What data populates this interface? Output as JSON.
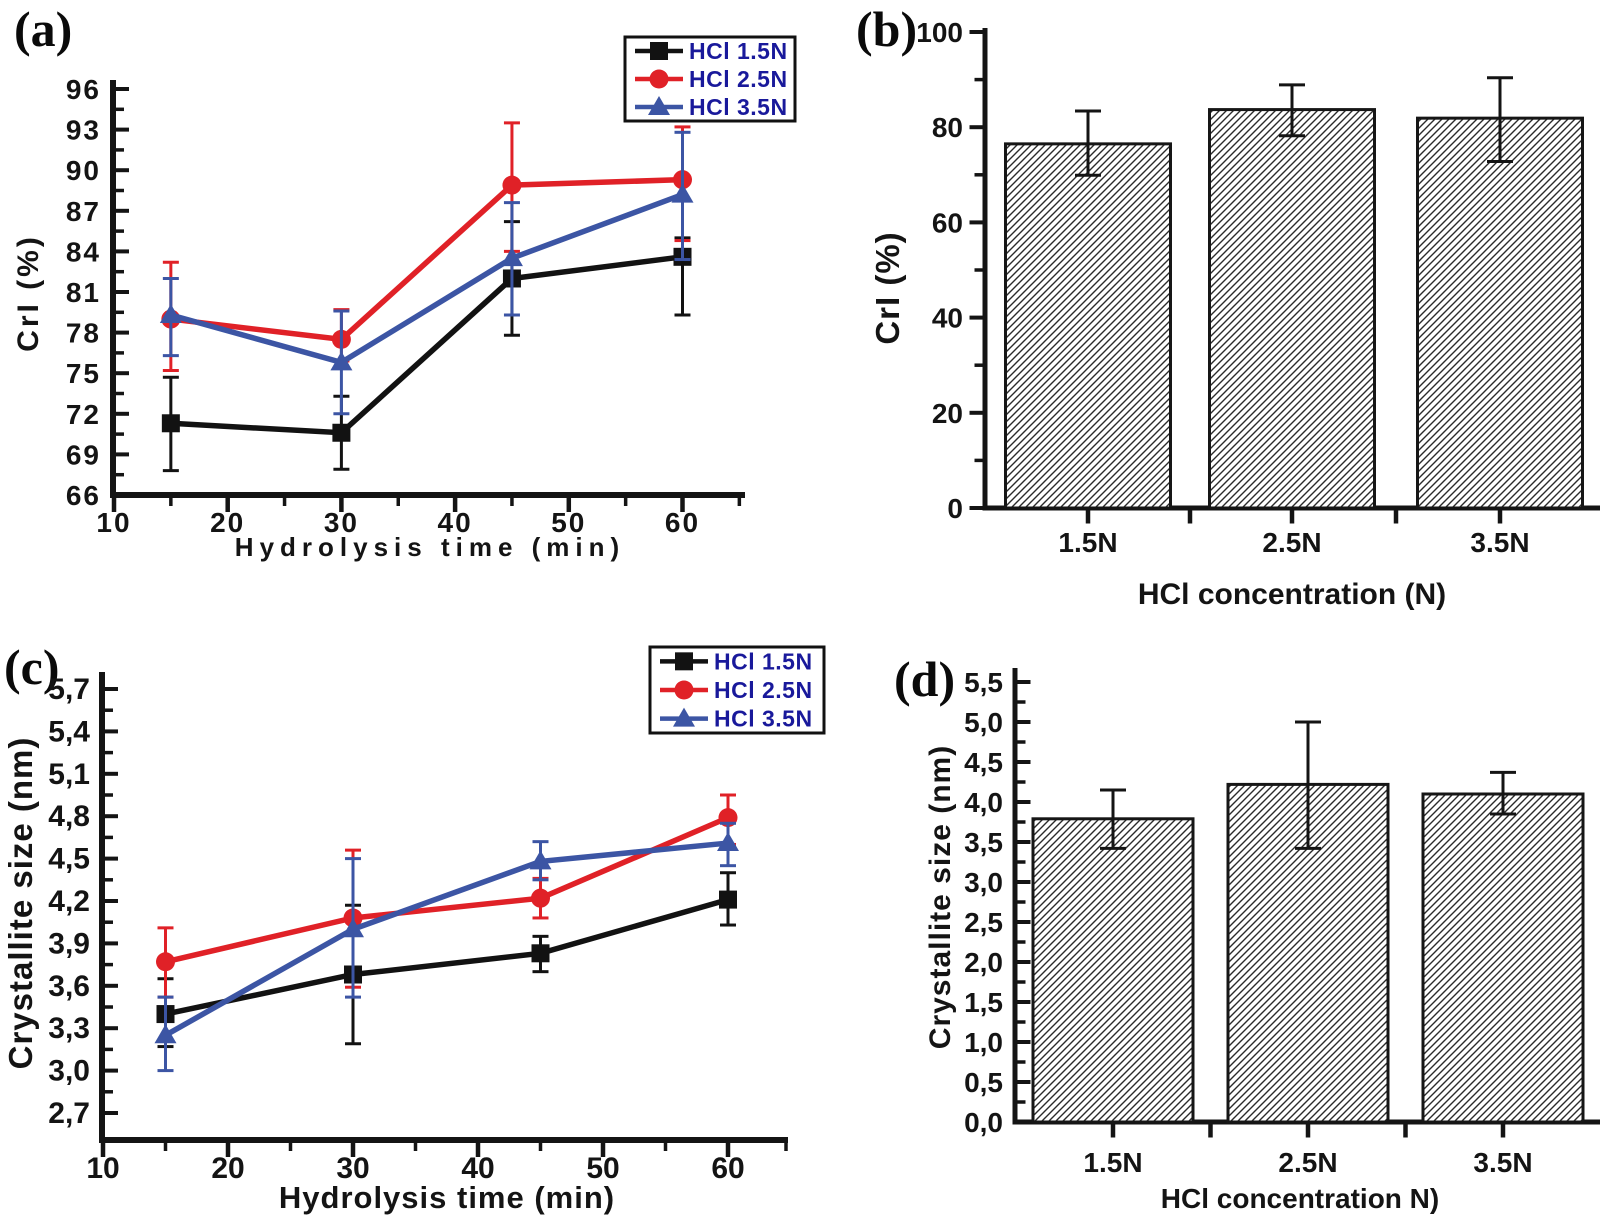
{
  "colors": {
    "axis": "#141414",
    "series_black": "#121212",
    "series_red": "#e02127",
    "series_blue": "#3c55a4",
    "legend_text": "#19199b",
    "hatch_line": "#2b2b2b",
    "bar_outline": "#161616",
    "background": "#ffffff"
  },
  "panels": {
    "a": {
      "tag": "(a)"
    },
    "b": {
      "tag": "(b)"
    },
    "c": {
      "tag": "(c)"
    },
    "d": {
      "tag": "(d)"
    }
  },
  "legend": {
    "items": [
      {
        "label": "HCl 1.5N",
        "marker": "square",
        "color_key": "series_black"
      },
      {
        "label": "HCl 2.5N",
        "marker": "circle",
        "color_key": "series_red"
      },
      {
        "label": "HCl 3.5N",
        "marker": "triangle",
        "color_key": "series_blue"
      }
    ]
  },
  "chart_data": [
    {
      "panel": "a",
      "type": "line",
      "xlabel": "Hydrolysis time (min)",
      "ylabel": "CrI (%)",
      "x": [
        15,
        30,
        45,
        60
      ],
      "xlim": [
        10,
        65.5
      ],
      "ylim": [
        66,
        96
      ],
      "x_major_ticks": [
        10,
        20,
        30,
        40,
        50,
        60
      ],
      "x_minor_ticks": [
        15,
        25,
        35,
        45,
        55,
        65
      ],
      "y_tick_step": 3,
      "y_minor_step": 1.5,
      "comma_decimals": false,
      "legend": true,
      "series": [
        {
          "name": "HCl 1.5N",
          "marker": "square",
          "color_key": "series_black",
          "y": [
            71.3,
            70.6,
            82.0,
            83.6
          ],
          "err_lo": [
            67.8,
            67.9,
            77.8,
            79.3
          ],
          "err_hi": [
            74.7,
            73.3,
            86.2,
            85.0
          ]
        },
        {
          "name": "HCl 2.5N",
          "marker": "circle",
          "color_key": "series_red",
          "y": [
            79.0,
            77.5,
            88.9,
            89.3
          ],
          "err_lo": [
            75.2,
            75.9,
            84.0,
            84.8
          ],
          "err_hi": [
            83.2,
            79.7,
            93.5,
            93.2
          ]
        },
        {
          "name": "HCl 3.5N",
          "marker": "triangle",
          "color_key": "series_blue",
          "y": [
            79.3,
            75.8,
            83.5,
            88.2
          ],
          "err_lo": [
            76.3,
            72.0,
            79.3,
            83.4
          ],
          "err_hi": [
            82.0,
            79.6,
            87.6,
            92.8
          ]
        }
      ]
    },
    {
      "panel": "b",
      "type": "bar",
      "xlabel": "HCl concentration (N)",
      "ylabel": "CrI (%)",
      "categories": [
        "1.5N",
        "2.5N",
        "3.5N"
      ],
      "values": [
        76.5,
        83.7,
        81.9
      ],
      "err_lo": [
        69.9,
        78.2,
        72.8
      ],
      "err_hi": [
        83.4,
        88.9,
        90.4
      ],
      "ylim": [
        0,
        100
      ],
      "y_tick_step": 20,
      "y_minor_step": 10,
      "comma_decimals": false
    },
    {
      "panel": "c",
      "type": "line",
      "xlabel": "Hydrolysis time (min)",
      "ylabel": "Crystallite size (nm)",
      "x": [
        15,
        30,
        45,
        60
      ],
      "xlim": [
        10,
        64.9
      ],
      "ylim": [
        2.7,
        5.7
      ],
      "x_major_ticks": [
        10,
        20,
        30,
        40,
        50,
        60
      ],
      "x_minor_ticks": [
        15,
        25,
        35,
        45,
        55,
        65
      ],
      "y_tick_step": 0.3,
      "y_minor_step": 0.15,
      "comma_decimals": true,
      "legend": true,
      "series": [
        {
          "name": "HCl 1.5N",
          "marker": "square",
          "color_key": "series_black",
          "y": [
            3.4,
            3.68,
            3.83,
            4.21
          ],
          "err_lo": [
            3.17,
            3.19,
            3.7,
            4.03
          ],
          "err_hi": [
            3.65,
            4.17,
            3.95,
            4.4
          ]
        },
        {
          "name": "HCl 2.5N",
          "marker": "circle",
          "color_key": "series_red",
          "y": [
            3.77,
            4.08,
            4.22,
            4.79
          ],
          "err_lo": [
            3.52,
            3.59,
            4.08,
            4.6
          ],
          "err_hi": [
            4.01,
            4.56,
            4.36,
            4.95
          ]
        },
        {
          "name": "HCl 3.5N",
          "marker": "triangle",
          "color_key": "series_blue",
          "y": [
            3.25,
            4.0,
            4.48,
            4.61
          ],
          "err_lo": [
            3.0,
            3.52,
            4.35,
            4.45
          ],
          "err_hi": [
            3.52,
            4.5,
            4.62,
            4.75
          ]
        }
      ]
    },
    {
      "panel": "d",
      "type": "bar",
      "xlabel": "HCl concentration N)",
      "ylabel": "Crystallite size (nm)",
      "categories": [
        "1.5N",
        "2.5N",
        "3.5N"
      ],
      "values": [
        3.79,
        4.22,
        4.1
      ],
      "err_lo": [
        3.42,
        3.42,
        3.85
      ],
      "err_hi": [
        4.15,
        5.0,
        4.37
      ],
      "ylim": [
        0,
        5.5
      ],
      "y_tick_step": 0.5,
      "y_minor_step": 0.25,
      "comma_decimals": true
    }
  ]
}
